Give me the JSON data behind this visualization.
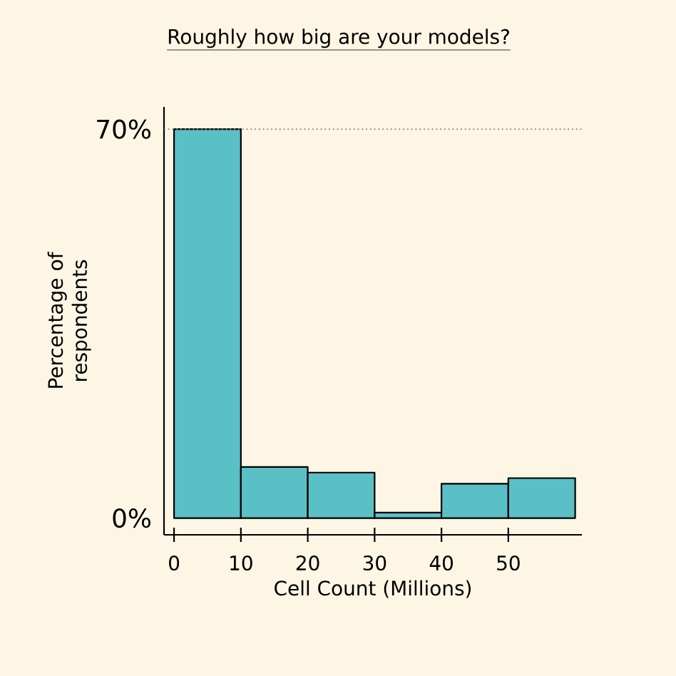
{
  "chart_data": {
    "type": "histogram",
    "title": "Roughly how big are your models?",
    "xlabel": "Cell Count (Millions)",
    "ylabel": "Percentage of respondents",
    "bins": [
      0,
      10,
      20,
      30,
      40,
      50,
      60
    ],
    "values": [
      70,
      9.2,
      8.2,
      1.0,
      6.2,
      7.2
    ],
    "color": "#5bbfc6",
    "xlim": [
      -1.5,
      61
    ],
    "xticks": [
      0,
      10,
      20,
      30,
      40,
      50
    ],
    "ylim": [
      -3,
      74
    ],
    "yticks": [
      {
        "value": 0,
        "label": "0%"
      },
      {
        "value": 70,
        "label": "70%"
      }
    ],
    "ref_lines": [
      {
        "axis": "y",
        "value": 70,
        "line_style": "dotted"
      }
    ],
    "grid": false
  }
}
